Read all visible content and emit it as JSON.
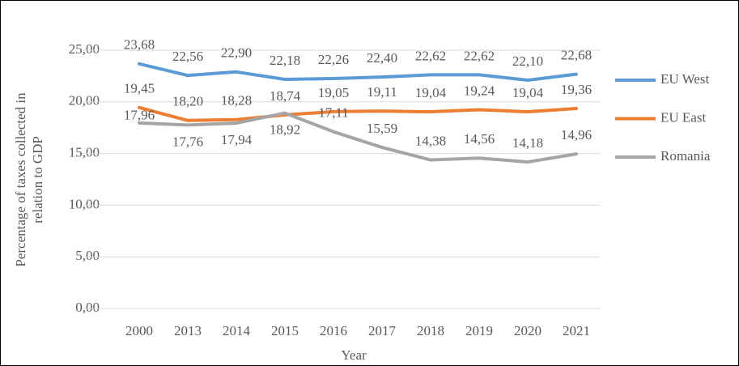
{
  "chart_data": {
    "type": "line",
    "x_label": "Year",
    "y_label": [
      "Percentage of taxes collected in",
      "relation to GDP"
    ],
    "categories": [
      "2000",
      "2013",
      "2014",
      "2015",
      "2016",
      "2017",
      "2018",
      "2019",
      "2020",
      "2021"
    ],
    "series": [
      {
        "name": "EU West",
        "color": "#5b9bd5",
        "values": [
          23.68,
          22.56,
          22.9,
          22.18,
          22.26,
          22.4,
          22.62,
          22.62,
          22.1,
          22.68
        ],
        "value_labels": [
          "23,68",
          "22,56",
          "22,90",
          "22,18",
          "22,26",
          "22,40",
          "22,62",
          "22,62",
          "22,10",
          "22,68"
        ]
      },
      {
        "name": "EU East",
        "color": "#ed7d31",
        "values": [
          19.45,
          18.2,
          18.28,
          18.74,
          19.05,
          19.11,
          19.04,
          19.24,
          19.04,
          19.36
        ],
        "value_labels": [
          "19,45",
          "18,20",
          "18,28",
          "18,74",
          "19,05",
          "19,11",
          "19,04",
          "19,24",
          "19,04",
          "19,36"
        ]
      },
      {
        "name": "Romania",
        "color": "#a5a5a5",
        "values": [
          17.96,
          17.76,
          17.94,
          18.92,
          17.11,
          15.59,
          14.38,
          14.56,
          14.18,
          14.96
        ],
        "value_labels": [
          "17,96",
          "17,76",
          "17,94",
          "18,92",
          "17,11",
          "15,59",
          "14,38",
          "14,56",
          "14,18",
          "14,96"
        ]
      }
    ],
    "ylim": [
      0,
      25
    ],
    "yticks": [
      {
        "value": 0,
        "label": "0,00"
      },
      {
        "value": 5,
        "label": "5,00"
      },
      {
        "value": 10,
        "label": "10,00"
      },
      {
        "value": 15,
        "label": "15,00"
      },
      {
        "value": 20,
        "label": "20,00"
      },
      {
        "value": 25,
        "label": "25,00"
      }
    ],
    "grid": true,
    "legend": "right"
  }
}
